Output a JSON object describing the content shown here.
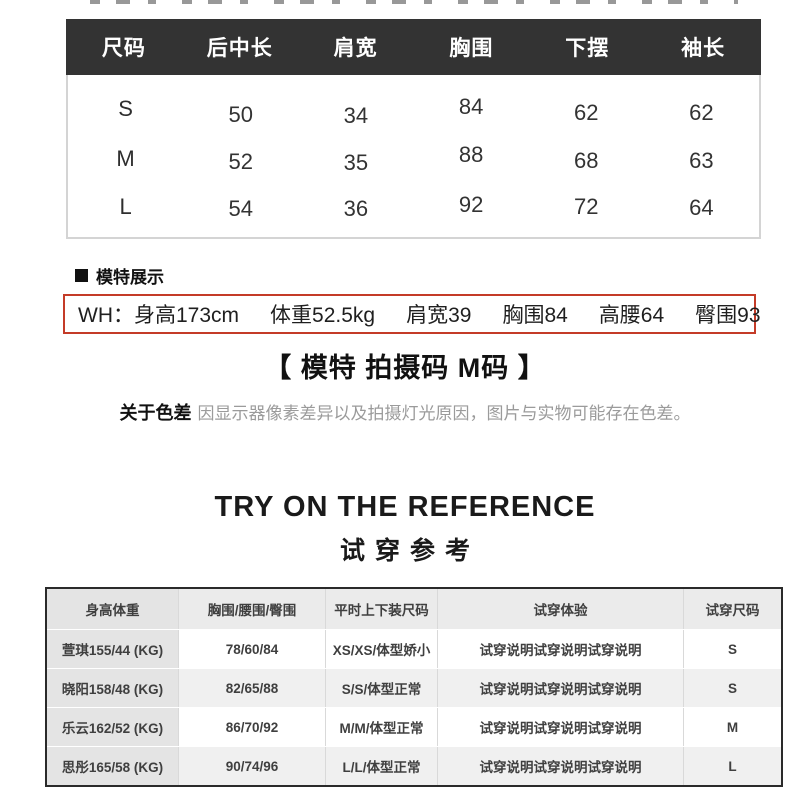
{
  "size_table": {
    "columns": [
      "尺码",
      "后中长",
      "肩宽",
      "胸围",
      "下摆",
      "袖长"
    ],
    "rows": [
      {
        "size": "S",
        "values": [
          "50",
          "34",
          "84",
          "62",
          "62"
        ]
      },
      {
        "size": "M",
        "values": [
          "52",
          "35",
          "88",
          "68",
          "63"
        ]
      },
      {
        "size": "L",
        "values": [
          "54",
          "36",
          "92",
          "72",
          "64"
        ]
      }
    ]
  },
  "model_section": {
    "title": "模特展示",
    "stats": [
      "WH：身高173cm",
      "体重52.5kg",
      "肩宽39",
      "胸围84",
      "高腰64",
      "臀围93"
    ],
    "shoot_size_heading": "【 模特 拍摄码  M码 】",
    "color_note_bold": "关于色差",
    "color_note_rest": "因显示器像素差异以及拍摄灯光原因，图片与实物可能存在色差。"
  },
  "try_on": {
    "title_en": "TRY ON THE REFERENCE",
    "title_zh": "试穿参考",
    "columns": [
      "身高体重",
      "胸围/腰围/臀围",
      "平时上下装尺码",
      "试穿体验",
      "试穿尺码"
    ],
    "rows": [
      [
        "萱琪155/44 (KG)",
        "78/60/84",
        "XS/XS/体型娇小",
        "试穿说明试穿说明试穿说明",
        "S"
      ],
      [
        "晓阳158/48 (KG)",
        "82/65/88",
        "S/S/体型正常",
        "试穿说明试穿说明试穿说明",
        "S"
      ],
      [
        "乐云162/52 (KG)",
        "86/70/92",
        "M/M/体型正常",
        "试穿说明试穿说明试穿说明",
        "M"
      ],
      [
        "思彤165/58 (KG)",
        "90/74/96",
        "L/L/体型正常",
        "试穿说明试穿说明试穿说明",
        "L"
      ]
    ]
  },
  "colors": {
    "accent_red": "#c43b28",
    "table_header_dark": "#333333"
  }
}
